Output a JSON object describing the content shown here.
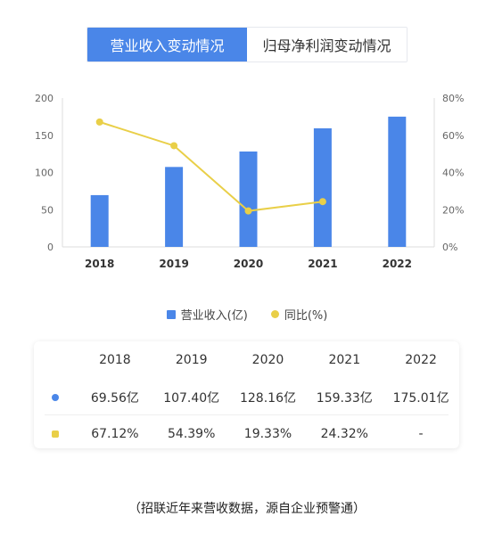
{
  "tabs": [
    {
      "label": "营业收入变动情况",
      "active": true
    },
    {
      "label": "归母净利润变动情况",
      "active": false
    }
  ],
  "colors": {
    "bar": "#4a86e8",
    "line": "#e9cf48",
    "axis_text": "#666666",
    "grid": "#e5e5e5"
  },
  "chart_data": {
    "type": "bar",
    "categories": [
      "2018",
      "2019",
      "2020",
      "2021",
      "2022"
    ],
    "series": [
      {
        "name": "营业收入(亿)",
        "type": "bar",
        "axis": "left",
        "values": [
          69.56,
          107.4,
          128.16,
          159.33,
          175.01
        ]
      },
      {
        "name": "同比(%)",
        "type": "line",
        "axis": "right",
        "values": [
          67.12,
          54.39,
          19.33,
          24.32,
          null
        ]
      }
    ],
    "left_axis": {
      "ylim": [
        0,
        200
      ],
      "ticks": [
        "0",
        "50",
        "100",
        "150",
        "200"
      ]
    },
    "right_axis": {
      "ylim": [
        0,
        80
      ],
      "ticks": [
        "0%",
        "20%",
        "40%",
        "60%",
        "80%"
      ]
    },
    "legend_position": "bottom"
  },
  "legend": [
    {
      "label": "营业收入(亿)",
      "marker": "bar-square"
    },
    {
      "label": "同比(%)",
      "marker": "line-dot"
    }
  ],
  "table": {
    "headers": [
      "2018",
      "2019",
      "2020",
      "2021",
      "2022"
    ],
    "rows": [
      {
        "marker": "blue-dot",
        "cells": [
          "69.56亿",
          "107.40亿",
          "128.16亿",
          "159.33亿",
          "175.01亿"
        ]
      },
      {
        "marker": "yellow-dot",
        "cells": [
          "67.12%",
          "54.39%",
          "19.33%",
          "24.32%",
          "-"
        ]
      }
    ]
  },
  "footnote": "（招联近年来营收数据，源自企业预警通）"
}
